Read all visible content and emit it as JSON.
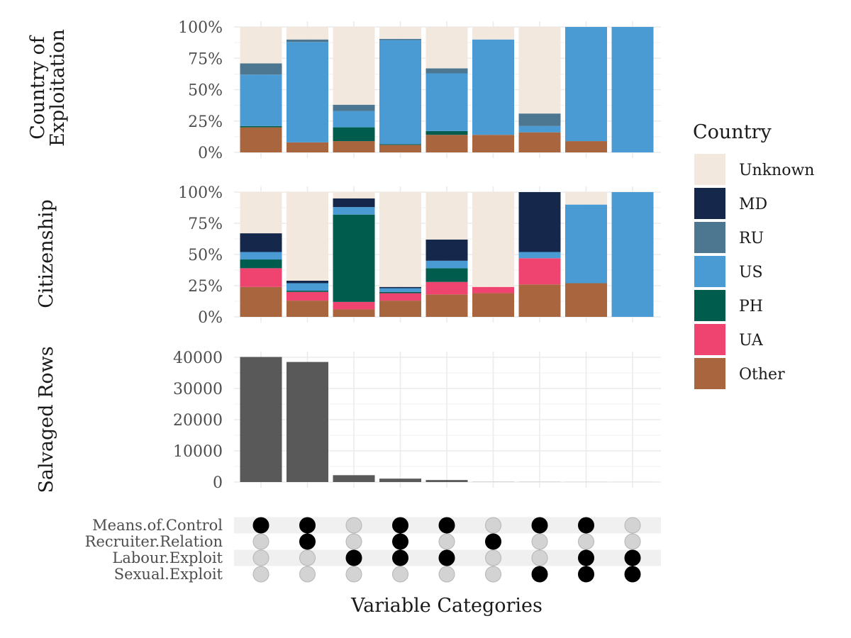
{
  "figure": {
    "xlabel": "Variable Categories"
  },
  "colors": {
    "Unknown": "#f3e8de",
    "MD": "#15284c",
    "RU": "#4d7790",
    "US": "#4a9bd4",
    "PH": "#005c4d",
    "UA": "#ef4470",
    "Other": "#a8653e",
    "count_bar": "#595959",
    "dot_on": "#000000",
    "dot_off": "#d3d3d3",
    "grid": "#ebebeb"
  },
  "legend": {
    "title": "Country",
    "entries": [
      "Unknown",
      "MD",
      "RU",
      "US",
      "PH",
      "UA",
      "Other"
    ]
  },
  "chart_data": [
    {
      "type": "bar",
      "stacked": true,
      "panel": "Country of Exploitation",
      "ylabel": "Country of\nExploitation",
      "ylim": [
        0,
        100
      ],
      "y_ticks": [
        "0%",
        "25%",
        "50%",
        "75%",
        "100%"
      ],
      "categories": [
        "1",
        "2",
        "3",
        "4",
        "5",
        "6",
        "7",
        "8",
        "9"
      ],
      "series": [
        {
          "name": "Other",
          "values": [
            20,
            8,
            9,
            6,
            14,
            14,
            16,
            9,
            0
          ]
        },
        {
          "name": "UA",
          "values": [
            0,
            0,
            0,
            0,
            0,
            0,
            0,
            0,
            0
          ]
        },
        {
          "name": "PH",
          "values": [
            1,
            0,
            11,
            0.5,
            3,
            0,
            0,
            0,
            0
          ]
        },
        {
          "name": "US",
          "values": [
            41,
            80,
            13,
            83,
            46,
            76,
            5,
            91,
            100
          ]
        },
        {
          "name": "RU",
          "values": [
            9,
            2,
            5,
            1,
            4,
            0,
            10,
            0,
            0
          ]
        },
        {
          "name": "MD",
          "values": [
            0,
            0,
            0,
            0,
            0,
            0,
            0,
            0,
            0
          ]
        },
        {
          "name": "Unknown",
          "values": [
            29,
            10,
            62,
            9.5,
            33,
            10,
            69,
            0,
            0
          ]
        }
      ]
    },
    {
      "type": "bar",
      "stacked": true,
      "panel": "Citizenship",
      "ylabel": "Citizenship",
      "ylim": [
        0,
        100
      ],
      "y_ticks": [
        "0%",
        "25%",
        "50%",
        "75%",
        "100%"
      ],
      "categories": [
        "1",
        "2",
        "3",
        "4",
        "5",
        "6",
        "7",
        "8",
        "9"
      ],
      "series": [
        {
          "name": "Other",
          "values": [
            24,
            13,
            6,
            13,
            18,
            19,
            26,
            27,
            0
          ]
        },
        {
          "name": "UA",
          "values": [
            15,
            7,
            6,
            6,
            10,
            5,
            21,
            0,
            0
          ]
        },
        {
          "name": "PH",
          "values": [
            7,
            1,
            70,
            1,
            11,
            0,
            0,
            0,
            0
          ]
        },
        {
          "name": "US",
          "values": [
            6,
            6,
            6,
            3,
            6,
            0,
            5,
            63,
            100
          ]
        },
        {
          "name": "MD",
          "values": [
            15,
            2,
            7,
            1,
            17,
            0,
            48,
            0,
            0
          ]
        },
        {
          "name": "RU",
          "values": [
            0,
            0,
            0,
            0,
            0,
            0,
            0,
            0,
            0
          ]
        },
        {
          "name": "Unknown",
          "values": [
            33,
            71,
            5,
            76,
            38,
            76,
            0,
            10,
            0
          ]
        }
      ]
    },
    {
      "type": "bar",
      "panel": "Salvaged Rows",
      "ylabel": "Salvaged Rows",
      "ylim": [
        0,
        40000
      ],
      "y_ticks": [
        "0",
        "10000",
        "20000",
        "30000",
        "40000"
      ],
      "categories": [
        "1",
        "2",
        "3",
        "4",
        "5",
        "6",
        "7",
        "8",
        "9"
      ],
      "values": [
        40100,
        38500,
        2200,
        1100,
        650,
        40,
        30,
        20,
        10
      ]
    },
    {
      "type": "table",
      "panel": "Variable combination matrix",
      "rows": [
        "Means.of.Control",
        "Recruiter.Relation",
        "Labour.Exploit",
        "Sexual.Exploit"
      ],
      "columns": [
        "1",
        "2",
        "3",
        "4",
        "5",
        "6",
        "7",
        "8",
        "9"
      ],
      "cells": [
        [
          1,
          1,
          0,
          1,
          1,
          0,
          1,
          1,
          0
        ],
        [
          0,
          1,
          0,
          1,
          0,
          1,
          0,
          0,
          0
        ],
        [
          0,
          0,
          1,
          1,
          1,
          0,
          0,
          1,
          1
        ],
        [
          0,
          0,
          0,
          0,
          0,
          0,
          1,
          1,
          1
        ]
      ]
    }
  ]
}
